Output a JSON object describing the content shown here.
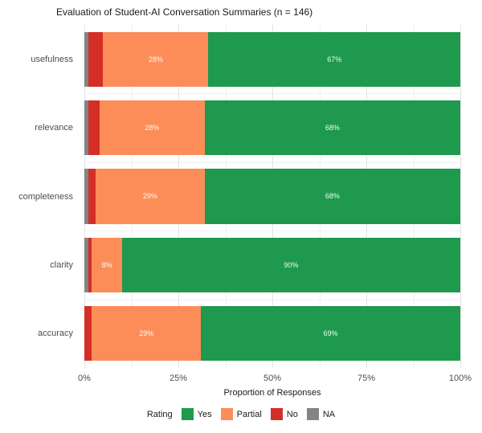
{
  "chart_data": {
    "type": "bar",
    "stacked": true,
    "orientation": "horizontal",
    "title": "Evaluation of Student-AI Conversation Summaries (n = 146)",
    "xlabel": "Proportion of Responses",
    "ylabel": "",
    "categories": [
      "usefulness",
      "relevance",
      "completeness",
      "clarity",
      "accuracy"
    ],
    "series": [
      {
        "name": "NA",
        "color": "#848484",
        "values": [
          1,
          1,
          1,
          1,
          0
        ]
      },
      {
        "name": "No",
        "color": "#d32f27",
        "values": [
          4,
          3,
          2,
          1,
          2
        ]
      },
      {
        "name": "Partial",
        "color": "#fc8d59",
        "values": [
          28,
          28,
          29,
          8,
          29
        ]
      },
      {
        "name": "Yes",
        "color": "#1e994d",
        "values": [
          67,
          68,
          68,
          90,
          69
        ]
      }
    ],
    "segment_labels": [
      [
        "",
        "",
        "28%",
        "67%"
      ],
      [
        "",
        "",
        "28%",
        "68%"
      ],
      [
        "",
        "",
        "29%",
        "68%"
      ],
      [
        "",
        "",
        "8%",
        "90%"
      ],
      [
        "",
        "",
        "29%",
        "69%"
      ]
    ],
    "xlim": [
      0,
      100
    ],
    "x_ticks": [
      {
        "value": 0,
        "label": "0%"
      },
      {
        "value": 25,
        "label": "25%"
      },
      {
        "value": 50,
        "label": "50%"
      },
      {
        "value": 75,
        "label": "75%"
      },
      {
        "value": 100,
        "label": "100%"
      }
    ],
    "minor_grid_step": 12.5,
    "grid": true,
    "legend": {
      "title": "Rating",
      "position": "bottom",
      "entries": [
        {
          "label": "Yes",
          "color": "#1e994d"
        },
        {
          "label": "Partial",
          "color": "#fc8d59"
        },
        {
          "label": "No",
          "color": "#d32f27"
        },
        {
          "label": "NA",
          "color": "#848484"
        }
      ]
    }
  }
}
